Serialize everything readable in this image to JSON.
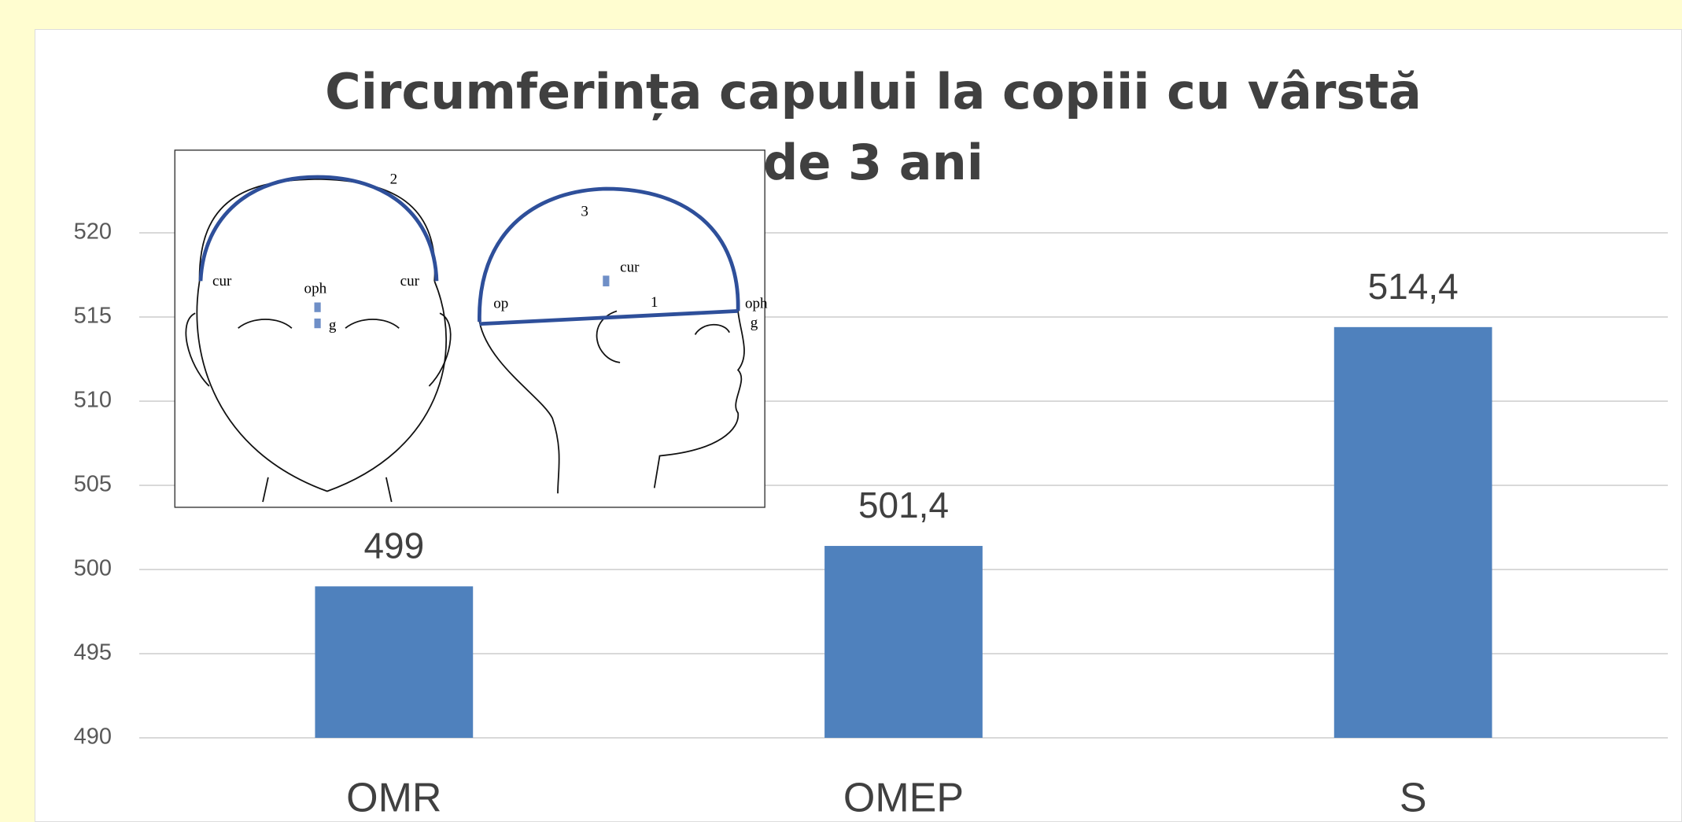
{
  "chart_data": {
    "type": "bar",
    "title": "Circumferința capului la copiii cu vârstă de 3 ani",
    "categories": [
      "OMR",
      "OMEP",
      "S"
    ],
    "values": [
      499,
      501.4,
      514.4
    ],
    "value_labels": [
      "499",
      "501,4",
      "514,4"
    ],
    "color": "#4f81bd",
    "ylim": [
      490,
      520
    ],
    "yticks": [
      490,
      495,
      500,
      505,
      510,
      515,
      520
    ],
    "grid": true,
    "inset_labels": [
      "2",
      "cur",
      "oph",
      "cur",
      "g",
      "3",
      "cur",
      "op",
      "1",
      "oph",
      "g"
    ]
  }
}
